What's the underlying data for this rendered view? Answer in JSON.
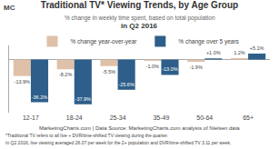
{
  "chart_data": {
    "type": "bar",
    "title": "Traditional TV* Viewing Trends, by Age Group",
    "subtitle": [
      "% change in weekly time spent, based on total population",
      "in Q2 2016"
    ],
    "annotations": [
      "MC",
      "MarketingCharts.com | Data Source: MarketingCharts.com analysis of Nielsen data",
      "*Traditional TV refers to all live + DVR/time-shifted TV viewing during the quarter.",
      "In Q2 2016, live viewing averaged 26.07 per week for the 2+ population and DVR/time-shifted TV 3.11 per week."
    ],
    "categories": [
      "12-17",
      "18-24",
      "25-34",
      "35-49",
      "50-64",
      "65+"
    ],
    "series": [
      {
        "name": "% change year-over-year",
        "color": "#dfc0a8",
        "values": [
          -13.9,
          -8.2,
          -5.5,
          -1.0,
          -1.9,
          1.2
        ],
        "value_labels": [
          "-13.9%",
          "-8.2%",
          "-5.5%",
          "-1.0%",
          "-1.9%",
          "1.2%"
        ]
      },
      {
        "name": "% change over 5 years",
        "color": "#2e5f8a",
        "values": [
          -36.2,
          -37.9,
          -25.6,
          -13.0,
          1.0,
          5.1
        ],
        "value_labels": [
          "-36.2%",
          "-37.9%",
          "-25.6%",
          "-13.0%",
          "+1.0%",
          "+5.1%"
        ]
      }
    ],
    "ylim": [
      -45,
      12
    ],
    "yticks": [],
    "grid": false,
    "legend": "top",
    "data_labels": true,
    "tick_labels": "x"
  }
}
